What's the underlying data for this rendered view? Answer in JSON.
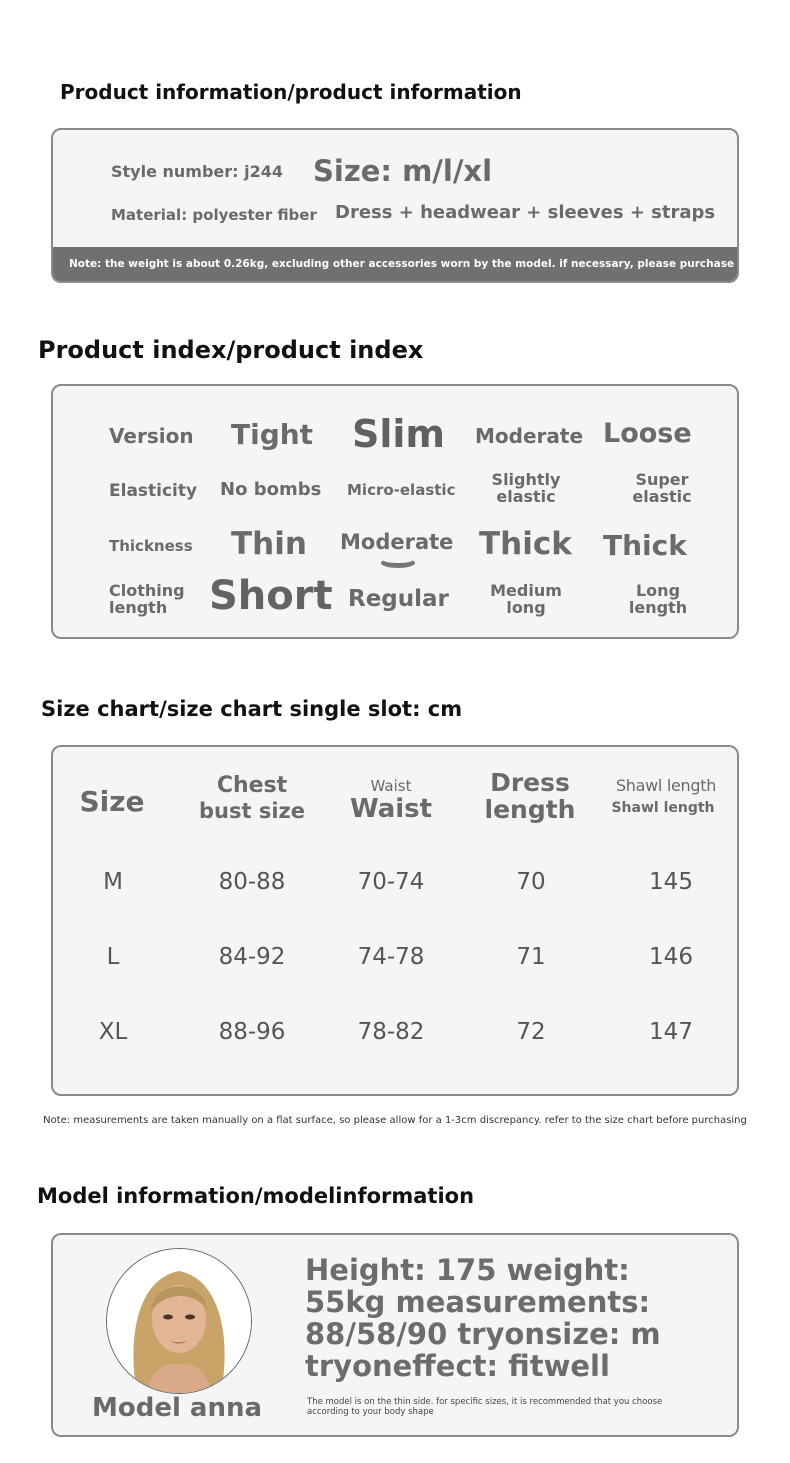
{
  "product_info": {
    "title": "Product information/product information",
    "style_number": "Style number: j244",
    "size": "Size: m/l/xl",
    "material": "Material: polyester fiber",
    "contents": "Dress + headwear + sleeves + straps",
    "note": "Note: the weight is about 0.26kg, excluding other accessories worn by the model. if necessary, please purchase in the store"
  },
  "product_index": {
    "title": "Product index/product index",
    "rows": [
      {
        "label": "Version",
        "options": [
          "Tight",
          "Slim",
          "Moderate",
          "Loose"
        ],
        "selected": "Slim"
      },
      {
        "label": "Elasticity",
        "options": [
          "No bombs",
          "Micro-elastic",
          "Slightly elastic",
          "Super elastic"
        ]
      },
      {
        "label": "Thickness",
        "options": [
          "Thin",
          "Moderate",
          "Thick",
          "Thick"
        ],
        "selected": "Moderate"
      },
      {
        "label": "Clothing length",
        "options": [
          "Short",
          "Regular",
          "Medium long",
          "Long length"
        ],
        "selected": "Short"
      }
    ]
  },
  "size_chart": {
    "title": "Size chart/size chart single slot: cm",
    "headers": {
      "size": "Size",
      "chest_top": "Chest",
      "chest_bottom": "bust size",
      "waist_top": "Waist",
      "waist_bottom": "Waist",
      "dress_top": "Dress",
      "dress_bottom": "length",
      "shawl_top": "Shawl length",
      "shawl_bottom": "Shawl length"
    },
    "rows": [
      [
        "M",
        "80-88",
        "70-74",
        "70",
        "145"
      ],
      [
        "L",
        "84-92",
        "74-78",
        "71",
        "146"
      ],
      [
        "XL",
        "88-96",
        "78-82",
        "72",
        "147"
      ]
    ],
    "note": "Note: measurements are taken manually on a flat surface, so please allow for a 1-3cm discrepancy. refer to the size chart before purchasing"
  },
  "model_info": {
    "title": "Model information/modelinformation",
    "name": "Model anna",
    "details_lines": [
      "Height: 175 weight:",
      "55kg measurements:",
      "88/58/90 tryonsize: m",
      "tryoneffect: fitwell"
    ],
    "advice": "The model is on the thin side. for specific sizes, it is recommended that you choose according to your body shape"
  }
}
